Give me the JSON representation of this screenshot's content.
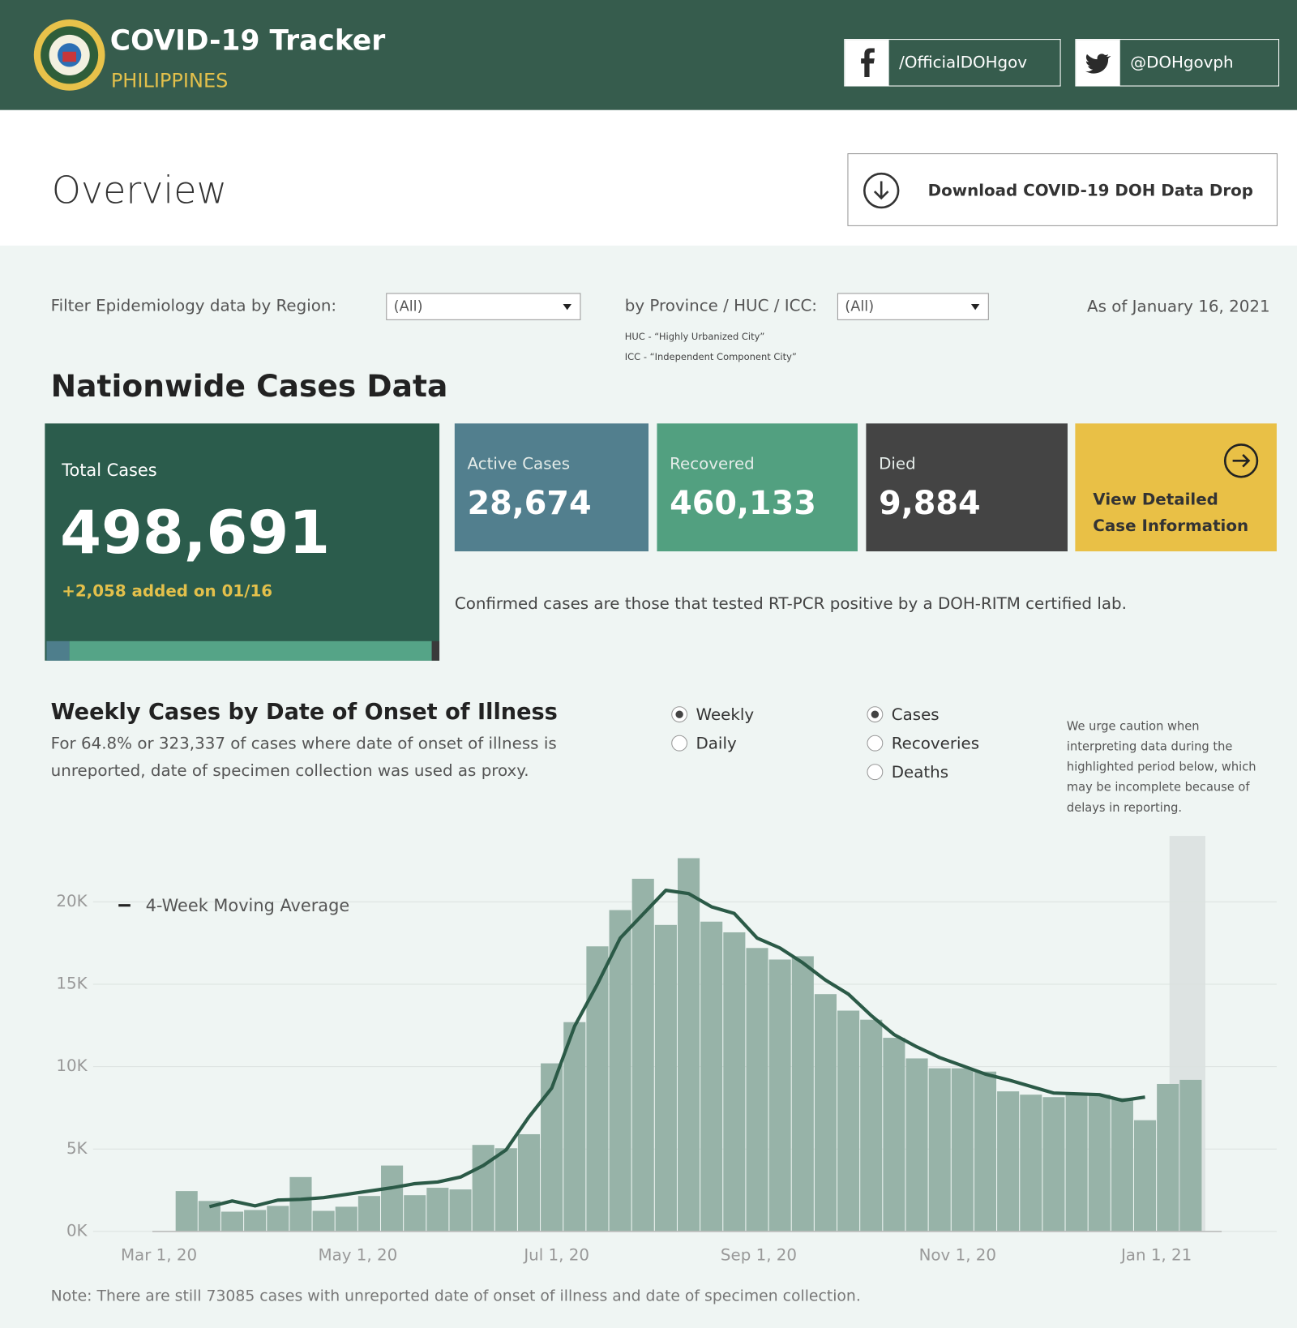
{
  "header": {
    "title": "COVID-19 Tracker",
    "subtitle": "PHILIPPINES",
    "facebook": "/OfficialDOHgov",
    "twitter": "@DOHgovph"
  },
  "overview": {
    "title": "Overview",
    "download": "Download COVID-19 DOH Data Drop"
  },
  "filters": {
    "region_label": "Filter Epidemiology data by Region:",
    "region_value": "(All)",
    "province_label": "by Province / HUC / ICC:",
    "province_value": "(All)",
    "notes": [
      "HUC - “Highly Urbanized City”",
      "ICC - “Independent Component City”"
    ],
    "as_of": "As of January 16, 2021"
  },
  "nationwide": {
    "title": "Nationwide Cases Data",
    "total": {
      "label": "Total Cases",
      "value": {
        "value": 498691,
        "label": "498,691"
      },
      "added": "+2,058 added on 01/16"
    },
    "cards": [
      {
        "label": "Active Cases",
        "value": {
          "value": 28674,
          "label": "28,674"
        }
      },
      {
        "label": "Recovered",
        "value": {
          "value": 460133,
          "label": "460,133"
        }
      },
      {
        "label": "Died",
        "value": {
          "value": 9884,
          "label": "9,884"
        }
      }
    ],
    "detail_link": [
      "View Detailed",
      "Case Information"
    ],
    "note": "Confirmed cases are those that tested RT-PCR positive by a DOH-RITM certified lab."
  },
  "weekly": {
    "title": "Weekly Cases by Date of Onset of Illness",
    "subtitle": [
      "For 64.8% or 323,337 of cases where date of onset of illness is",
      "unreported, date of specimen collection was used as proxy."
    ],
    "period_options": [
      {
        "label": "Weekly",
        "selected": true
      },
      {
        "label": "Daily",
        "selected": false
      }
    ],
    "measure_options": [
      {
        "label": "Cases",
        "selected": true
      },
      {
        "label": "Recoveries",
        "selected": false
      },
      {
        "label": "Deaths",
        "selected": false
      }
    ],
    "caution": [
      "We urge caution when",
      "interpreting data during the",
      "highlighted period below, which",
      "may be incomplete because of",
      "delays in reporting."
    ],
    "footnote": "Note: There are still 73085 cases with unreported date of onset of illness and date of specimen collection."
  },
  "chart_data": {
    "type": "bar",
    "x": [
      "2020-03-06",
      "2020-03-13",
      "2020-03-20",
      "2020-03-27",
      "2020-04-03",
      "2020-04-10",
      "2020-04-17",
      "2020-04-24",
      "2020-05-01",
      "2020-05-08",
      "2020-05-15",
      "2020-05-22",
      "2020-05-29",
      "2020-06-05",
      "2020-06-12",
      "2020-06-19",
      "2020-06-26",
      "2020-07-03",
      "2020-07-10",
      "2020-07-17",
      "2020-07-24",
      "2020-07-31",
      "2020-08-07",
      "2020-08-14",
      "2020-08-21",
      "2020-08-28",
      "2020-09-04",
      "2020-09-11",
      "2020-09-18",
      "2020-09-25",
      "2020-10-02",
      "2020-10-09",
      "2020-10-16",
      "2020-10-23",
      "2020-10-30",
      "2020-11-06",
      "2020-11-13",
      "2020-11-20",
      "2020-11-27",
      "2020-12-04",
      "2020-12-11",
      "2020-12-18",
      "2020-12-25",
      "2021-01-01",
      "2021-01-08"
    ],
    "series": [
      {
        "type": "bar",
        "color": "#97b3a8",
        "values": [
          2450,
          1850,
          1200,
          1300,
          1550,
          3300,
          1250,
          1500,
          2150,
          4000,
          2200,
          2650,
          2550,
          5250,
          5050,
          5900,
          10200,
          12700,
          17300,
          19500,
          21400,
          18600,
          22650,
          18800,
          18150,
          17200,
          16500,
          16700,
          14400,
          13400,
          12850,
          11750,
          10500,
          9900,
          9900,
          9700,
          8500,
          8300,
          8150,
          8300,
          8300,
          8100,
          6750,
          8950,
          9200
        ]
      },
      {
        "type": "line",
        "name": "4-Week Moving Average",
        "color": "#2b5a47",
        "values": [
          null,
          1500,
          1850,
          1550,
          1900,
          1950,
          2050,
          2250,
          2450,
          2650,
          2900,
          3000,
          3300,
          4000,
          4950,
          6950,
          8700,
          12450,
          15000,
          17800,
          19250,
          20700,
          20500,
          19700,
          19300,
          17800,
          17200,
          16300,
          15250,
          14400,
          13100,
          11950,
          11200,
          10550,
          10050,
          9550,
          9200,
          8800,
          8400,
          8350,
          8300,
          7950,
          8150,
          null,
          null
        ]
      }
    ],
    "xlim": [
      "2020-02-28",
      "2021-01-21"
    ],
    "xticks": [
      {
        "value": "2020-03-01",
        "label": "Mar 1, 20"
      },
      {
        "value": "2020-05-01",
        "label": "May 1, 20"
      },
      {
        "value": "2020-07-01",
        "label": "Jul 1, 20"
      },
      {
        "value": "2020-09-01",
        "label": "Sep 1, 20"
      },
      {
        "value": "2020-11-01",
        "label": "Nov 1, 20"
      },
      {
        "value": "2021-01-01",
        "label": "Jan 1, 21"
      }
    ],
    "ylim": [
      0,
      24000
    ],
    "yticks": [
      {
        "value": 0,
        "label": "0K"
      },
      {
        "value": 5000,
        "label": "5K"
      },
      {
        "value": 10000,
        "label": "10K"
      },
      {
        "value": 15000,
        "label": "15K"
      },
      {
        "value": 20000,
        "label": "20K"
      }
    ],
    "grid": true,
    "legend": "top-left",
    "highlight_range": [
      "2021-01-05",
      "2021-01-16"
    ],
    "highlight_color": "#dde3e2"
  }
}
